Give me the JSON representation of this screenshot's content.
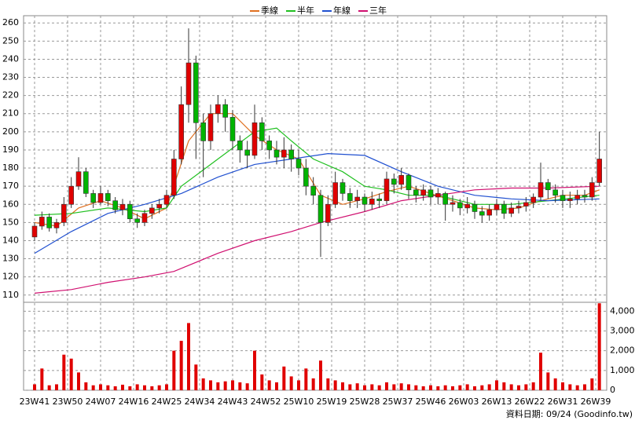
{
  "chart_data": {
    "type": "candlestick",
    "legend": "top",
    "grid": true,
    "footer": "資料日期: 09/24 (Goodinfo.tw)",
    "up_color": "#e00000",
    "down_color": "#00b400",
    "x": [
      0,
      2,
      4,
      6,
      8,
      10,
      12,
      14,
      16,
      18,
      20,
      22,
      24,
      26,
      28,
      30,
      32,
      34,
      36,
      38,
      40,
      42,
      44,
      46,
      48,
      50,
      52,
      54,
      56,
      58,
      60,
      62,
      64,
      66,
      68,
      70,
      72,
      74,
      76,
      78,
      80,
      82,
      84,
      86,
      88,
      90,
      92,
      94,
      96,
      98,
      100,
      102,
      104,
      106,
      108,
      110,
      112,
      114,
      116,
      118,
      120,
      122,
      124,
      126,
      128,
      130,
      132,
      134,
      136,
      138,
      140,
      142,
      144,
      146,
      148,
      150,
      152,
      154
    ],
    "xlim": [
      -3,
      156
    ],
    "xticks": [
      {
        "value": 0,
        "label": "23W41"
      },
      {
        "value": 9,
        "label": "23W50"
      },
      {
        "value": 18,
        "label": "24W07"
      },
      {
        "value": 27,
        "label": "24W16"
      },
      {
        "value": 36,
        "label": "24W25"
      },
      {
        "value": 45,
        "label": "24W34"
      },
      {
        "value": 54,
        "label": "24W43"
      },
      {
        "value": 63,
        "label": "24W52"
      },
      {
        "value": 72,
        "label": "25W10"
      },
      {
        "value": 81,
        "label": "25W19"
      },
      {
        "value": 90,
        "label": "25W28"
      },
      {
        "value": 99,
        "label": "25W37"
      },
      {
        "value": 108,
        "label": "25W46"
      },
      {
        "value": 117,
        "label": "26W03"
      },
      {
        "value": 126,
        "label": "26W13"
      },
      {
        "value": 135,
        "label": "26W22"
      },
      {
        "value": 144,
        "label": "26W31"
      },
      {
        "value": 153,
        "label": "26W39"
      }
    ],
    "ylim": [
      106,
      264
    ],
    "yticks": [
      110,
      120,
      130,
      140,
      150,
      160,
      170,
      180,
      190,
      200,
      210,
      220,
      230,
      240,
      250,
      260
    ],
    "candles": [
      [
        142,
        150,
        140,
        148
      ],
      [
        148,
        156,
        146,
        153
      ],
      [
        153,
        155,
        145,
        147
      ],
      [
        147,
        152,
        144,
        150
      ],
      [
        150,
        164,
        148,
        160
      ],
      [
        160,
        175,
        158,
        170
      ],
      [
        170,
        186,
        168,
        178
      ],
      [
        178,
        180,
        164,
        166
      ],
      [
        166,
        168,
        158,
        161
      ],
      [
        161,
        170,
        160,
        166
      ],
      [
        166,
        168,
        159,
        162
      ],
      [
        162,
        164,
        155,
        157
      ],
      [
        157,
        163,
        154,
        160
      ],
      [
        160,
        162,
        150,
        152
      ],
      [
        152,
        155,
        147,
        150
      ],
      [
        150,
        157,
        148,
        155
      ],
      [
        155,
        160,
        152,
        158
      ],
      [
        158,
        163,
        155,
        160
      ],
      [
        160,
        168,
        158,
        165
      ],
      [
        165,
        190,
        163,
        185
      ],
      [
        185,
        225,
        182,
        215
      ],
      [
        215,
        257,
        205,
        238
      ],
      [
        238,
        242,
        185,
        205
      ],
      [
        205,
        210,
        175,
        195
      ],
      [
        195,
        215,
        190,
        210
      ],
      [
        210,
        220,
        205,
        215
      ],
      [
        215,
        218,
        200,
        208
      ],
      [
        208,
        212,
        190,
        195
      ],
      [
        195,
        198,
        183,
        190
      ],
      [
        190,
        195,
        180,
        187
      ],
      [
        187,
        215,
        185,
        205
      ],
      [
        205,
        208,
        190,
        195
      ],
      [
        195,
        198,
        185,
        190
      ],
      [
        190,
        195,
        182,
        186
      ],
      [
        186,
        197,
        180,
        190
      ],
      [
        190,
        193,
        178,
        185
      ],
      [
        185,
        190,
        176,
        180
      ],
      [
        180,
        185,
        165,
        170
      ],
      [
        170,
        175,
        160,
        165
      ],
      [
        165,
        168,
        131,
        150
      ],
      [
        150,
        165,
        148,
        160
      ],
      [
        160,
        178,
        158,
        172
      ],
      [
        172,
        174,
        162,
        166
      ],
      [
        166,
        169,
        158,
        162
      ],
      [
        162,
        168,
        158,
        164
      ],
      [
        164,
        166,
        156,
        160
      ],
      [
        160,
        167,
        157,
        163
      ],
      [
        163,
        166,
        158,
        162
      ],
      [
        162,
        178,
        160,
        174
      ],
      [
        174,
        177,
        166,
        171
      ],
      [
        171,
        180,
        168,
        176
      ],
      [
        176,
        177,
        163,
        168
      ],
      [
        168,
        170,
        161,
        165
      ],
      [
        165,
        171,
        162,
        168
      ],
      [
        168,
        170,
        160,
        164
      ],
      [
        164,
        169,
        160,
        166
      ],
      [
        166,
        167,
        151,
        160
      ],
      [
        160,
        165,
        156,
        161
      ],
      [
        161,
        163,
        154,
        158
      ],
      [
        158,
        164,
        155,
        160
      ],
      [
        160,
        162,
        152,
        156
      ],
      [
        156,
        159,
        150,
        154
      ],
      [
        154,
        160,
        151,
        157
      ],
      [
        157,
        163,
        154,
        160
      ],
      [
        160,
        162,
        152,
        155
      ],
      [
        155,
        161,
        153,
        158
      ],
      [
        158,
        162,
        155,
        159
      ],
      [
        159,
        164,
        156,
        161
      ],
      [
        161,
        166,
        158,
        164
      ],
      [
        164,
        183,
        162,
        172
      ],
      [
        172,
        174,
        163,
        168
      ],
      [
        168,
        171,
        161,
        165
      ],
      [
        165,
        168,
        158,
        162
      ],
      [
        162,
        167,
        158,
        163
      ],
      [
        163,
        168,
        160,
        165
      ],
      [
        165,
        168,
        161,
        164
      ],
      [
        164,
        175,
        162,
        172
      ],
      [
        172,
        200,
        170,
        185
      ]
    ],
    "series": [
      {
        "name": "季線",
        "color": "#e07020",
        "x": [
          0,
          6,
          12,
          18,
          24,
          30,
          36,
          42,
          48,
          54,
          60,
          66,
          72,
          78,
          84,
          90,
          96,
          102,
          108,
          114,
          120,
          126,
          132,
          138,
          144,
          150,
          154
        ],
        "values": [
          150,
          148,
          158,
          162,
          158,
          152,
          158,
          195,
          210,
          210,
          198,
          190,
          185,
          165,
          160,
          163,
          167,
          170,
          166,
          162,
          158,
          157,
          158,
          162,
          165,
          165,
          168
        ]
      },
      {
        "name": "半年",
        "color": "#20c020",
        "x": [
          0,
          10,
          20,
          30,
          36,
          40,
          50,
          60,
          66,
          70,
          76,
          84,
          90,
          96,
          102,
          110,
          120,
          130,
          140,
          154
        ],
        "values": [
          154,
          155,
          158,
          156,
          158,
          170,
          185,
          200,
          202,
          195,
          185,
          178,
          170,
          168,
          165,
          165,
          160,
          160,
          162,
          165
        ]
      },
      {
        "name": "年線",
        "color": "#2050d0",
        "x": [
          0,
          10,
          20,
          30,
          40,
          50,
          60,
          70,
          80,
          90,
          100,
          110,
          120,
          130,
          140,
          154
        ],
        "values": [
          133,
          145,
          155,
          160,
          166,
          175,
          182,
          185,
          188,
          187,
          178,
          170,
          165,
          163,
          162,
          163
        ]
      },
      {
        "name": "三年",
        "color": "#d01070",
        "x": [
          0,
          10,
          20,
          30,
          38,
          50,
          60,
          70,
          78,
          90,
          100,
          110,
          120,
          130,
          140,
          154
        ],
        "values": [
          111,
          113,
          117,
          120,
          123,
          133,
          140,
          145,
          150,
          156,
          162,
          165,
          168,
          169,
          169,
          170
        ]
      }
    ],
    "volume": {
      "color": "#e00000",
      "y2lim": [
        0,
        4450
      ],
      "y2ticks": [
        0,
        {
          "value": 1000,
          "label": "1,000"
        },
        {
          "value": 2000,
          "label": "2,000"
        },
        {
          "value": 3000,
          "label": "3,000"
        },
        {
          "value": 4000,
          "label": "4,000"
        }
      ],
      "values": [
        300,
        1100,
        250,
        300,
        1800,
        1600,
        900,
        400,
        250,
        300,
        250,
        200,
        280,
        200,
        300,
        250,
        200,
        250,
        300,
        2000,
        2500,
        3400,
        1300,
        600,
        500,
        400,
        450,
        500,
        400,
        350,
        2000,
        800,
        500,
        400,
        1200,
        700,
        500,
        1100,
        600,
        1500,
        600,
        500,
        400,
        300,
        350,
        250,
        300,
        250,
        400,
        300,
        350,
        300,
        250,
        200,
        250,
        200,
        250,
        200,
        250,
        300,
        200,
        250,
        300,
        500,
        400,
        300,
        250,
        300,
        400,
        1900,
        900,
        600,
        400,
        300,
        250,
        300,
        600,
        4400
      ]
    }
  }
}
